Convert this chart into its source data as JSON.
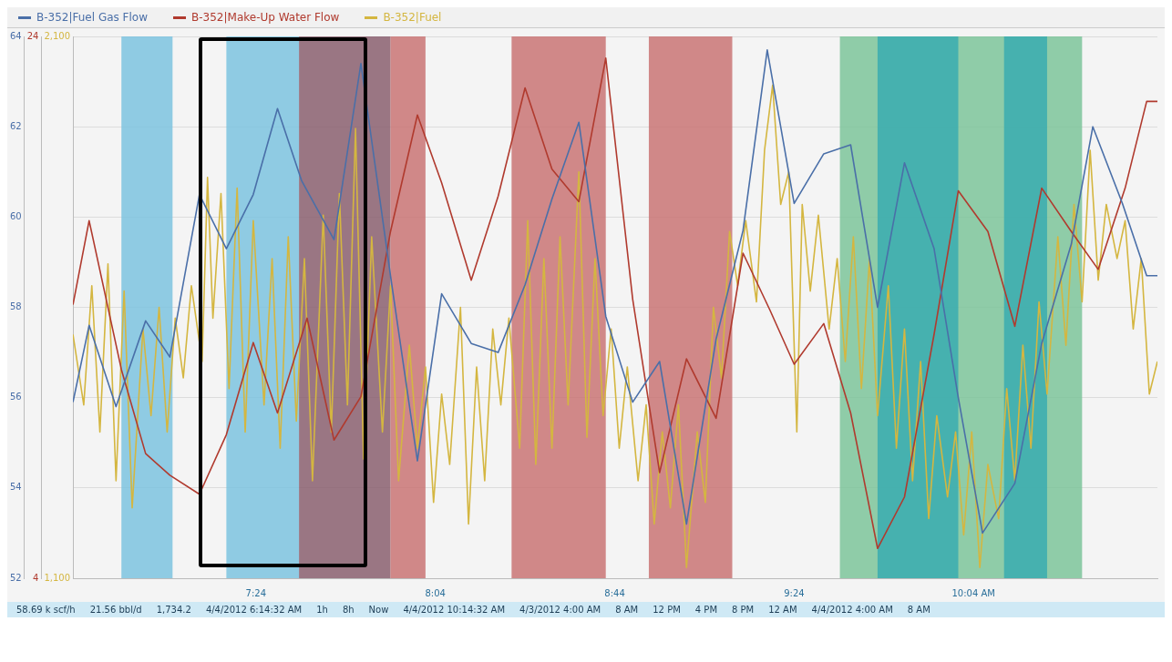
{
  "chart_data": {
    "type": "line",
    "legend": "top left",
    "marker": "none",
    "grid": "y",
    "xlim": [
      6.72,
      10.75
    ],
    "xticks": [
      {
        "value": 7.4,
        "label": "7:24"
      },
      {
        "value": 8.0667,
        "label": "8:04"
      },
      {
        "value": 8.7333,
        "label": "8:44"
      },
      {
        "value": 9.4,
        "label": "9:24"
      },
      {
        "value": 10.0667,
        "label": "10:04 AM"
      }
    ],
    "ylim": [
      52,
      64
    ],
    "yticks": [
      52,
      54,
      56,
      58,
      60,
      62,
      64
    ],
    "y2lim": [
      4,
      24
    ],
    "y2ticks": [
      4,
      24
    ],
    "y3lim": [
      1100,
      2100
    ],
    "y3ticks": [
      {
        "value": 1100,
        "label": "1,100"
      },
      {
        "value": 2100,
        "label": "2,100"
      }
    ],
    "series": [
      {
        "name": "B-352|Fuel Gas Flow",
        "color": "#4a6fa8",
        "x": [
          6.72,
          6.78,
          6.88,
          6.99,
          7.08,
          7.19,
          7.29,
          7.39,
          7.48,
          7.57,
          7.69,
          7.79,
          7.9,
          8.0,
          8.09,
          8.2,
          8.3,
          8.4,
          8.5,
          8.6,
          8.7,
          8.8,
          8.9,
          9.0,
          9.11,
          9.21,
          9.3,
          9.4,
          9.51,
          9.61,
          9.71,
          9.81,
          9.92,
          10.01,
          10.1,
          10.22,
          10.32,
          10.43,
          10.51,
          10.62,
          10.71,
          10.75
        ],
        "values": [
          55.9,
          57.6,
          55.8,
          57.7,
          56.9,
          60.5,
          59.3,
          60.5,
          62.4,
          60.8,
          59.5,
          63.4,
          58.7,
          54.6,
          58.3,
          57.2,
          57.0,
          58.5,
          60.4,
          62.1,
          57.8,
          55.9,
          56.8,
          53.2,
          57.3,
          59.7,
          63.7,
          60.3,
          61.4,
          61.6,
          58.0,
          61.2,
          59.3,
          56.0,
          53.0,
          54.1,
          57.2,
          59.4,
          62.0,
          60.3,
          58.7,
          58.7
        ]
      },
      {
        "name": "B-352|Make-Up Water Flow",
        "color": "#b03a2e",
        "axis": "y2",
        "x": [
          6.72,
          6.78,
          6.9,
          6.99,
          7.08,
          7.19,
          7.29,
          7.39,
          7.48,
          7.59,
          7.69,
          7.79,
          7.9,
          8.0,
          8.09,
          8.2,
          8.3,
          8.4,
          8.5,
          8.6,
          8.7,
          8.8,
          8.9,
          9.0,
          9.11,
          9.21,
          9.31,
          9.4,
          9.51,
          9.61,
          9.71,
          9.81,
          9.92,
          10.01,
          10.12,
          10.22,
          10.32,
          10.43,
          10.53,
          10.63,
          10.71,
          10.75
        ],
        "values": [
          14.1,
          17.2,
          11.7,
          8.6,
          7.8,
          7.1,
          9.3,
          12.7,
          10.1,
          13.6,
          9.1,
          10.7,
          16.8,
          21.1,
          18.6,
          15.0,
          18.1,
          22.1,
          19.1,
          17.9,
          23.2,
          14.3,
          7.9,
          12.1,
          9.9,
          16.0,
          13.9,
          11.9,
          13.4,
          10.1,
          5.1,
          7.0,
          13.0,
          18.3,
          16.8,
          13.3,
          18.4,
          16.8,
          15.4,
          18.4,
          21.6,
          21.6
        ]
      },
      {
        "name": "B-352|Fuel",
        "color": "#d4b640",
        "axis": "y3",
        "x": [
          6.72,
          6.76,
          6.79,
          6.82,
          6.85,
          6.88,
          6.91,
          6.94,
          6.98,
          7.01,
          7.04,
          7.07,
          7.1,
          7.13,
          7.16,
          7.2,
          7.22,
          7.24,
          7.27,
          7.3,
          7.33,
          7.36,
          7.39,
          7.43,
          7.46,
          7.49,
          7.52,
          7.55,
          7.58,
          7.61,
          7.65,
          7.68,
          7.71,
          7.74,
          7.77,
          7.8,
          7.83,
          7.87,
          7.9,
          7.93,
          7.97,
          8.0,
          8.03,
          8.06,
          8.09,
          8.12,
          8.16,
          8.19,
          8.22,
          8.25,
          8.28,
          8.31,
          8.34,
          8.38,
          8.41,
          8.44,
          8.47,
          8.5,
          8.53,
          8.56,
          8.6,
          8.63,
          8.66,
          8.69,
          8.72,
          8.75,
          8.78,
          8.82,
          8.85,
          8.88,
          8.91,
          8.94,
          8.97,
          9.0,
          9.04,
          9.07,
          9.1,
          9.13,
          9.16,
          9.19,
          9.22,
          9.26,
          9.29,
          9.32,
          9.35,
          9.38,
          9.41,
          9.43,
          9.46,
          9.49,
          9.53,
          9.56,
          9.59,
          9.62,
          9.65,
          9.68,
          9.71,
          9.75,
          9.78,
          9.81,
          9.84,
          9.87,
          9.9,
          9.93,
          9.97,
          10.0,
          10.03,
          10.06,
          10.09,
          10.12,
          10.16,
          10.19,
          10.22,
          10.25,
          10.28,
          10.31,
          10.34,
          10.38,
          10.41,
          10.44,
          10.47,
          10.5,
          10.53,
          10.56,
          10.6,
          10.63,
          10.66,
          10.69,
          10.72,
          10.75
        ],
        "values": [
          1550,
          1420,
          1640,
          1370,
          1680,
          1280,
          1630,
          1230,
          1560,
          1400,
          1600,
          1370,
          1580,
          1470,
          1640,
          1500,
          1840,
          1580,
          1810,
          1450,
          1820,
          1370,
          1760,
          1420,
          1690,
          1340,
          1730,
          1390,
          1690,
          1280,
          1770,
          1370,
          1810,
          1420,
          1930,
          1320,
          1730,
          1370,
          1640,
          1280,
          1530,
          1340,
          1490,
          1240,
          1440,
          1310,
          1600,
          1200,
          1490,
          1280,
          1560,
          1420,
          1580,
          1340,
          1760,
          1310,
          1690,
          1340,
          1730,
          1420,
          1850,
          1360,
          1690,
          1400,
          1560,
          1340,
          1490,
          1280,
          1420,
          1200,
          1370,
          1230,
          1420,
          1120,
          1370,
          1240,
          1600,
          1470,
          1740,
          1640,
          1760,
          1610,
          1890,
          2010,
          1790,
          1850,
          1370,
          1790,
          1630,
          1770,
          1560,
          1690,
          1500,
          1730,
          1450,
          1690,
          1400,
          1640,
          1340,
          1560,
          1280,
          1500,
          1210,
          1400,
          1250,
          1370,
          1180,
          1370,
          1120,
          1310,
          1210,
          1450,
          1280,
          1530,
          1340,
          1610,
          1440,
          1730,
          1530,
          1790,
          1610,
          1890,
          1650,
          1790,
          1690,
          1760,
          1560,
          1690,
          1440,
          1500
        ]
      }
    ],
    "bands": [
      {
        "axis": "x",
        "from": 6.9,
        "to": 7.09,
        "color": "#7cc3df"
      },
      {
        "axis": "x",
        "from": 7.29,
        "to": 7.56,
        "color": "#7cc3df"
      },
      {
        "axis": "x",
        "from": 7.56,
        "to": 7.9,
        "color": "#8a5f6e"
      },
      {
        "axis": "x",
        "from": 7.9,
        "to": 8.03,
        "color": "#c97474"
      },
      {
        "axis": "x",
        "from": 8.35,
        "to": 8.7,
        "color": "#c97474"
      },
      {
        "axis": "x",
        "from": 8.86,
        "to": 9.17,
        "color": "#c97474"
      },
      {
        "axis": "x",
        "from": 9.57,
        "to": 10.47,
        "color": "#7dc49a"
      },
      {
        "axis": "x",
        "from": 9.71,
        "to": 10.01,
        "color": "#3aabb0"
      },
      {
        "axis": "x",
        "from": 10.18,
        "to": 10.34,
        "color": "#3aabb0"
      }
    ],
    "annotations": [
      "58.69 k scf/h",
      "21.56 bbl/d",
      "1,734.2",
      "4/4/2012 6:14:32 AM",
      "1h",
      "8h",
      "Now",
      "4/4/2012 10:14:32 AM",
      "4/3/2012 4:00 AM",
      "8 AM",
      "12 PM",
      "4 PM",
      "8 PM",
      "12 AM",
      "4/4/2012 4:00 AM",
      "8 AM"
    ]
  }
}
